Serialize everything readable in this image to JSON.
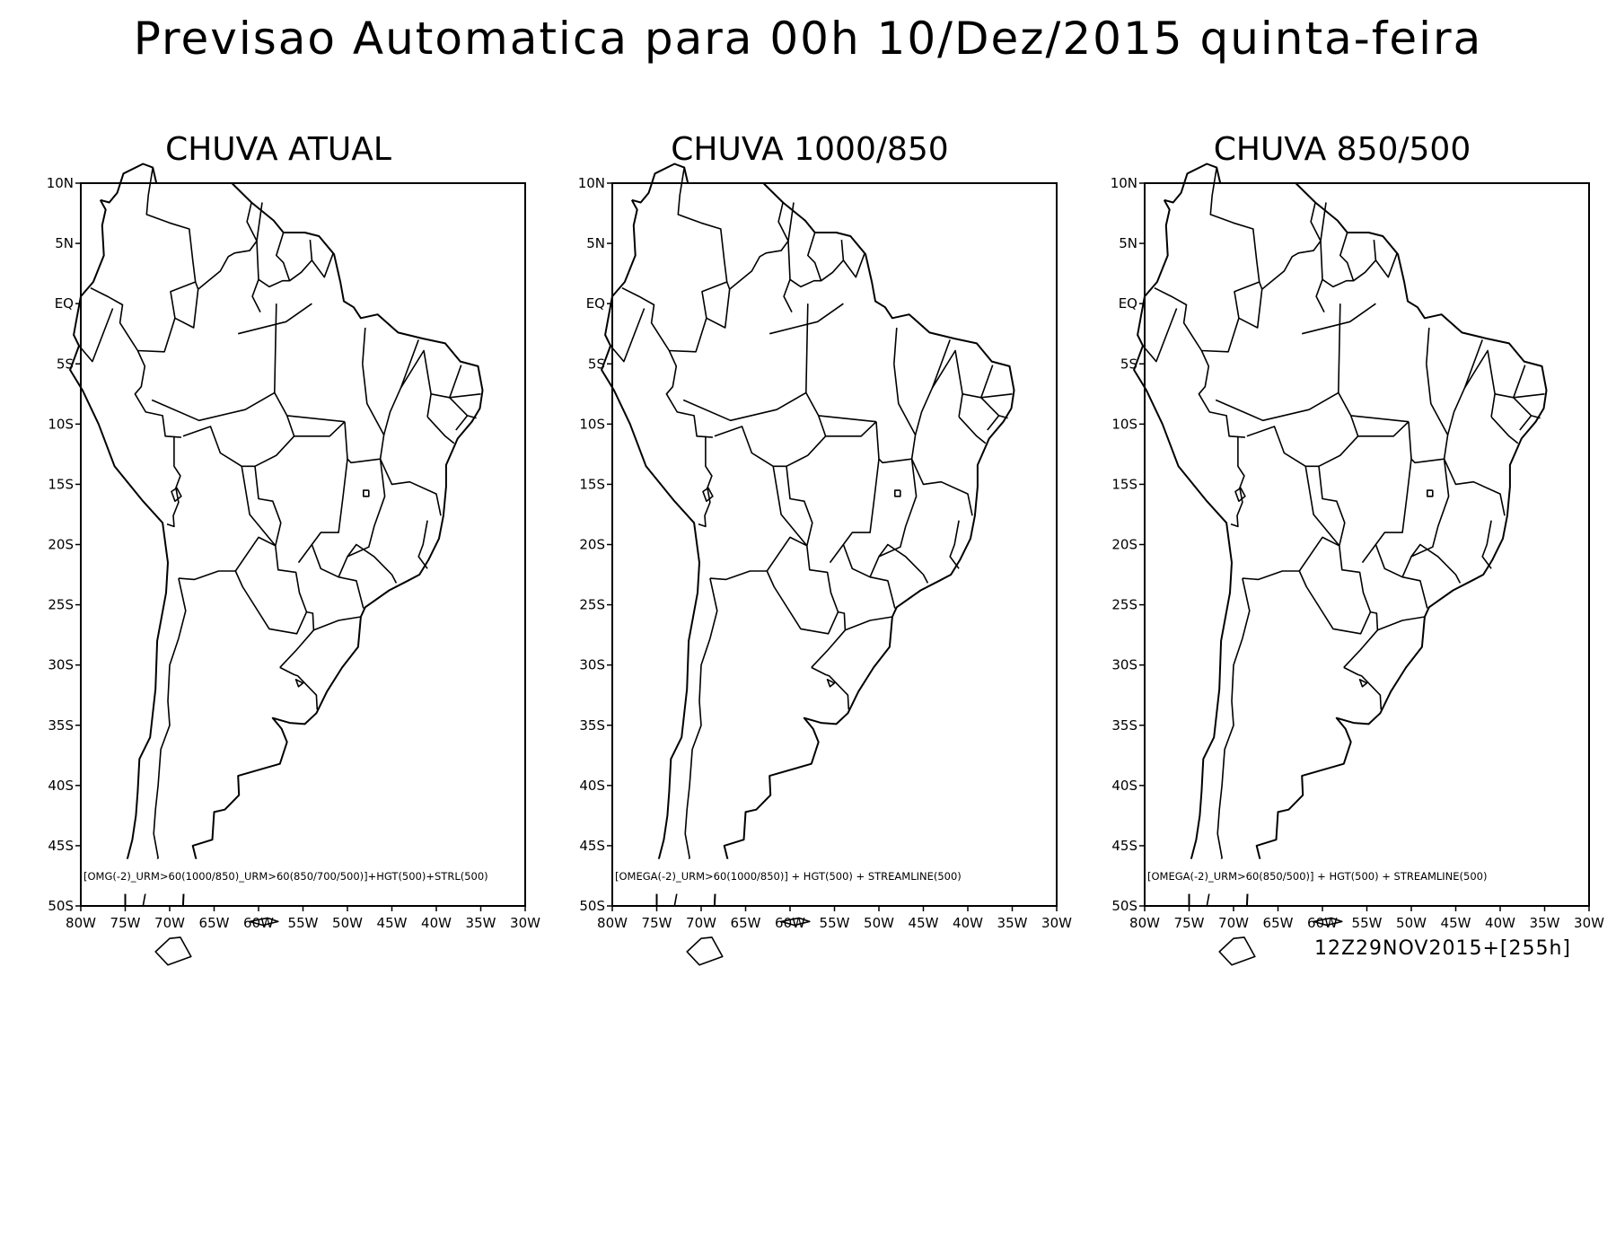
{
  "title": "Previsao Automatica para 00h 10/Dez/2015 quinta-feira",
  "panels": [
    {
      "title": "CHUVA ATUAL",
      "caption": "[OMG(-2)_URM>60(1000/850)_URM>60(850/700/500)]+HGT(500)+STRL(500)"
    },
    {
      "title": "CHUVA 1000/850",
      "caption": "[OMEGA(-2)_URM>60(1000/850)] + HGT(500) + STREAMLINE(500)"
    },
    {
      "title": "CHUVA 850/500",
      "caption": "[OMEGA(-2)_URM>60(850/500)] + HGT(500) + STREAMLINE(500)"
    }
  ],
  "lat_ticks": [
    "10N",
    "5N",
    "EQ",
    "5S",
    "10S",
    "15S",
    "20S",
    "25S",
    "30S",
    "35S",
    "40S",
    "45S",
    "50S"
  ],
  "lon_ticks": [
    "80W",
    "75W",
    "70W",
    "65W",
    "60W",
    "55W",
    "50W",
    "45W",
    "40W",
    "35W",
    "30W"
  ],
  "footer": "12Z29NOV2015+[255h]",
  "colors": {
    "line": "#000000",
    "background": "#ffffff"
  }
}
